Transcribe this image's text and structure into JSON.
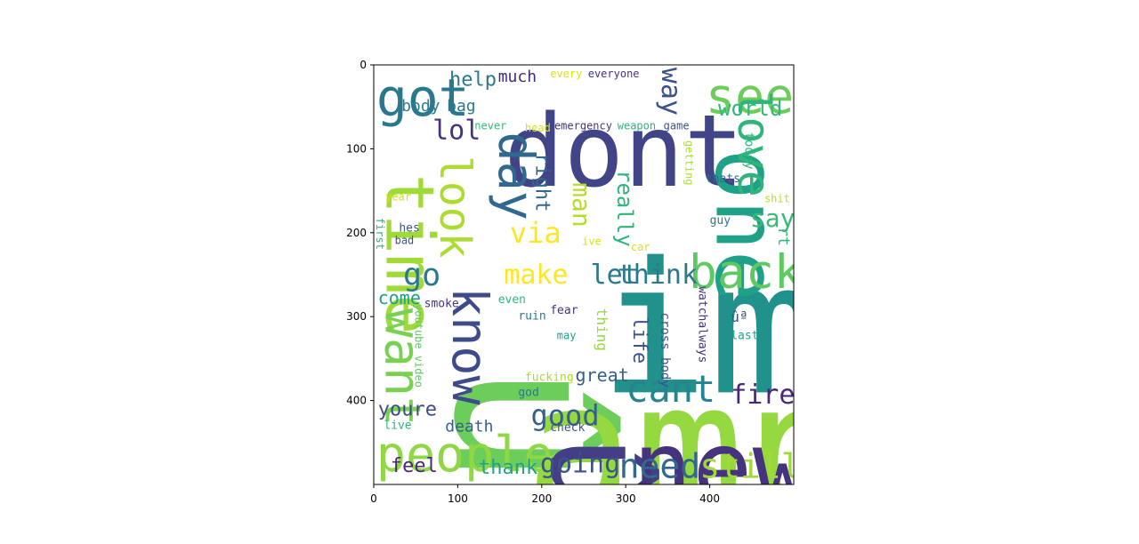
{
  "chart_data": {
    "type": "wordcloud",
    "xlim": [
      0,
      500
    ],
    "ylim": [
      500,
      0
    ],
    "x_ticks": [
      0,
      100,
      200,
      300,
      400
    ],
    "y_ticks": [
      0,
      100,
      200,
      300,
      400
    ],
    "grid": false,
    "palette": "viridis",
    "words": [
      {
        "text": "im",
        "x": 268,
        "y": 190,
        "size": 205,
        "rotate": 0,
        "color": "#21918c"
      },
      {
        "text": "û",
        "x": 80,
        "y": 355,
        "size": 230,
        "rotate": 90,
        "color": "#6ccd5a"
      },
      {
        "text": "amp",
        "x": 180,
        "y": 333,
        "size": 205,
        "rotate": 0,
        "color": "#95d840"
      },
      {
        "text": "dont",
        "x": 155,
        "y": 35,
        "size": 112,
        "rotate": 0,
        "color": "#414487"
      },
      {
        "text": "û",
        "x": 200,
        "y": 440,
        "size": 150,
        "rotate": 90,
        "color": "#433e85"
      },
      {
        "text": "new",
        "x": 308,
        "y": 412,
        "size": 112,
        "rotate": 0,
        "color": "#46337e"
      },
      {
        "text": "one",
        "x": 400,
        "y": 100,
        "size": 95,
        "rotate": 90,
        "color": "#1fa188"
      },
      {
        "text": "time",
        "x": 10,
        "y": 130,
        "size": 75,
        "rotate": 90,
        "color": "#a0da39"
      },
      {
        "text": "people",
        "x": 3,
        "y": 430,
        "size": 55,
        "rotate": 0,
        "color": "#8fd744"
      },
      {
        "text": "back",
        "x": 375,
        "y": 215,
        "size": 53,
        "rotate": 0,
        "color": "#5ec962"
      },
      {
        "text": "see",
        "x": 395,
        "y": 3,
        "size": 55,
        "rotate": 0,
        "color": "#6ccd5a"
      },
      {
        "text": "got",
        "x": 3,
        "y": 3,
        "size": 58,
        "rotate": 0,
        "color": "#2a788e"
      },
      {
        "text": "day",
        "x": 145,
        "y": 80,
        "size": 55,
        "rotate": 90,
        "color": "#31688e"
      },
      {
        "text": "love",
        "x": 430,
        "y": 30,
        "size": 50,
        "rotate": 90,
        "color": "#2fb47c"
      },
      {
        "text": "want",
        "x": 10,
        "y": 290,
        "size": 55,
        "rotate": 90,
        "color": "#7ad151"
      },
      {
        "text": "know",
        "x": 90,
        "y": 265,
        "size": 55,
        "rotate": 90,
        "color": "#3e4a89"
      },
      {
        "text": "look",
        "x": 75,
        "y": 108,
        "size": 48,
        "rotate": 90,
        "color": "#addc30"
      },
      {
        "text": "cant",
        "x": 300,
        "y": 360,
        "size": 42,
        "rotate": 0,
        "color": "#25848e"
      },
      {
        "text": "need",
        "x": 292,
        "y": 455,
        "size": 38,
        "rotate": 0,
        "color": "#31688e"
      },
      {
        "text": "still",
        "x": 388,
        "y": 455,
        "size": 38,
        "rotate": 0,
        "color": "#9fda3a"
      },
      {
        "text": "fire",
        "x": 425,
        "y": 375,
        "size": 30,
        "rotate": 0,
        "color": "#482878"
      },
      {
        "text": "good",
        "x": 187,
        "y": 398,
        "size": 32,
        "rotate": 0,
        "color": "#355f8d"
      },
      {
        "text": "going",
        "x": 198,
        "y": 457,
        "size": 30,
        "rotate": 0,
        "color": "#3b528b"
      },
      {
        "text": "go",
        "x": 35,
        "y": 230,
        "size": 35,
        "rotate": 0,
        "color": "#2a788e"
      },
      {
        "text": "let",
        "x": 258,
        "y": 232,
        "size": 30,
        "rotate": 0,
        "color": "#2a788e"
      },
      {
        "text": "think",
        "x": 290,
        "y": 232,
        "size": 30,
        "rotate": 0,
        "color": "#2a788e"
      },
      {
        "text": "make",
        "x": 155,
        "y": 232,
        "size": 30,
        "rotate": 0,
        "color": "#fde725"
      },
      {
        "text": "say",
        "x": 448,
        "y": 165,
        "size": 28,
        "rotate": 0,
        "color": "#3aba76"
      },
      {
        "text": "via",
        "x": 162,
        "y": 180,
        "size": 32,
        "rotate": 0,
        "color": "#fde725"
      },
      {
        "text": "man",
        "x": 235,
        "y": 140,
        "size": 28,
        "rotate": 90,
        "color": "#b5de2b"
      },
      {
        "text": "really",
        "x": 288,
        "y": 125,
        "size": 24,
        "rotate": 90,
        "color": "#2fb47c"
      },
      {
        "text": "right",
        "x": 190,
        "y": 105,
        "size": 22,
        "rotate": 90,
        "color": "#31688e"
      },
      {
        "text": "way",
        "x": 340,
        "y": 3,
        "size": 30,
        "rotate": 90,
        "color": "#3b528b"
      },
      {
        "text": "world",
        "x": 410,
        "y": 37,
        "size": 24,
        "rotate": 0,
        "color": "#35b779"
      },
      {
        "text": "lol",
        "x": 70,
        "y": 60,
        "size": 30,
        "rotate": 0,
        "color": "#46337e"
      },
      {
        "text": "help",
        "x": 90,
        "y": 5,
        "size": 22,
        "rotate": 0,
        "color": "#2a788e"
      },
      {
        "text": "much",
        "x": 148,
        "y": 3,
        "size": 18,
        "rotate": 0,
        "color": "#482878"
      },
      {
        "text": "body",
        "x": 33,
        "y": 38,
        "size": 18,
        "rotate": 0,
        "color": "#287d8e"
      },
      {
        "text": "bag",
        "x": 87,
        "y": 38,
        "size": 18,
        "rotate": 0,
        "color": "#2a788e"
      },
      {
        "text": "come",
        "x": 5,
        "y": 265,
        "size": 20,
        "rotate": 0,
        "color": "#1f9e89"
      },
      {
        "text": "youre",
        "x": 5,
        "y": 398,
        "size": 22,
        "rotate": 0,
        "color": "#3e4a89"
      },
      {
        "text": "feel",
        "x": 20,
        "y": 465,
        "size": 22,
        "rotate": 0,
        "color": "#482878"
      },
      {
        "text": "thank",
        "x": 125,
        "y": 467,
        "size": 22,
        "rotate": 0,
        "color": "#1fa188"
      },
      {
        "text": "death",
        "x": 85,
        "y": 420,
        "size": 18,
        "rotate": 0,
        "color": "#355f8d"
      },
      {
        "text": "great",
        "x": 240,
        "y": 357,
        "size": 20,
        "rotate": 0,
        "color": "#355f8d"
      },
      {
        "text": "life",
        "x": 306,
        "y": 300,
        "size": 22,
        "rotate": 90,
        "color": "#3b528b"
      },
      {
        "text": "thing",
        "x": 265,
        "y": 290,
        "size": 16,
        "rotate": 90,
        "color": "#95d840"
      },
      {
        "text": "cross body",
        "x": 340,
        "y": 295,
        "size": 14,
        "rotate": 90,
        "color": "#3b528b"
      },
      {
        "text": "watchalways",
        "x": 385,
        "y": 264,
        "size": 13,
        "rotate": 90,
        "color": "#46337e"
      },
      {
        "text": "today",
        "x": 440,
        "y": 80,
        "size": 14,
        "rotate": 90,
        "color": "#2fb47c"
      },
      {
        "text": "rt",
        "x": 480,
        "y": 193,
        "size": 18,
        "rotate": 90,
        "color": "#35b779"
      },
      {
        "text": "thats",
        "x": 395,
        "y": 128,
        "size": 13,
        "rotate": 0,
        "color": "#31688e"
      },
      {
        "text": "guy",
        "x": 400,
        "y": 178,
        "size": 13,
        "rotate": 0,
        "color": "#2a788e"
      },
      {
        "text": "getting",
        "x": 370,
        "y": 90,
        "size": 12,
        "rotate": 90,
        "color": "#addc30"
      },
      {
        "text": "shit",
        "x": 465,
        "y": 152,
        "size": 12,
        "rotate": 0,
        "color": "#b5de2b"
      },
      {
        "text": "ûª",
        "x": 425,
        "y": 290,
        "size": 16,
        "rotate": 0,
        "color": "#3b528b"
      },
      {
        "text": "last",
        "x": 425,
        "y": 315,
        "size": 13,
        "rotate": 0,
        "color": "#1fa188"
      },
      {
        "text": "fear",
        "x": 210,
        "y": 285,
        "size": 13,
        "rotate": 0,
        "color": "#46337e"
      },
      {
        "text": "may",
        "x": 218,
        "y": 315,
        "size": 12,
        "rotate": 0,
        "color": "#1fa188"
      },
      {
        "text": "even",
        "x": 148,
        "y": 272,
        "size": 13,
        "rotate": 0,
        "color": "#2fb47c"
      },
      {
        "text": "ruin",
        "x": 172,
        "y": 292,
        "size": 13,
        "rotate": 0,
        "color": "#2a788e"
      },
      {
        "text": "smoke",
        "x": 60,
        "y": 277,
        "size": 13,
        "rotate": 0,
        "color": "#46337e"
      },
      {
        "text": "youtube video",
        "x": 48,
        "y": 285,
        "size": 12,
        "rotate": 90,
        "color": "#5ec962"
      },
      {
        "text": "fucking",
        "x": 180,
        "y": 365,
        "size": 13,
        "rotate": 0,
        "color": "#addc30"
      },
      {
        "text": "god",
        "x": 172,
        "y": 383,
        "size": 13,
        "rotate": 0,
        "color": "#2a788e"
      },
      {
        "text": "check",
        "x": 210,
        "y": 425,
        "size": 13,
        "rotate": 0,
        "color": "#3b528b"
      },
      {
        "text": "live",
        "x": 12,
        "y": 422,
        "size": 13,
        "rotate": 0,
        "color": "#2fb47c"
      },
      {
        "text": "hes",
        "x": 30,
        "y": 187,
        "size": 13,
        "rotate": 0,
        "color": "#3b528b"
      },
      {
        "text": "bad",
        "x": 25,
        "y": 202,
        "size": 12,
        "rotate": 0,
        "color": "#3b528b"
      },
      {
        "text": "first",
        "x": 2,
        "y": 182,
        "size": 12,
        "rotate": 90,
        "color": "#2fb47c"
      },
      {
        "text": "year",
        "x": 14,
        "y": 150,
        "size": 12,
        "rotate": 0,
        "color": "#d8e219"
      },
      {
        "text": "ive",
        "x": 248,
        "y": 203,
        "size": 12,
        "rotate": 0,
        "color": "#d8e219"
      },
      {
        "text": "car",
        "x": 306,
        "y": 210,
        "size": 12,
        "rotate": 0,
        "color": "#d8e219"
      },
      {
        "text": "every",
        "x": 210,
        "y": 3,
        "size": 12,
        "rotate": 0,
        "color": "#d8e219"
      },
      {
        "text": "everyone",
        "x": 255,
        "y": 3,
        "size": 12,
        "rotate": 0,
        "color": "#46337e"
      },
      {
        "text": "never",
        "x": 120,
        "y": 65,
        "size": 12,
        "rotate": 0,
        "color": "#35b779"
      },
      {
        "text": "head",
        "x": 180,
        "y": 68,
        "size": 12,
        "rotate": 0,
        "color": "#d8e219"
      },
      {
        "text": "emergency",
        "x": 215,
        "y": 65,
        "size": 12,
        "rotate": 0,
        "color": "#46337e"
      },
      {
        "text": "weapon",
        "x": 290,
        "y": 65,
        "size": 12,
        "rotate": 0,
        "color": "#2fb47c"
      },
      {
        "text": "game",
        "x": 345,
        "y": 65,
        "size": 12,
        "rotate": 0,
        "color": "#3b528b"
      }
    ]
  }
}
